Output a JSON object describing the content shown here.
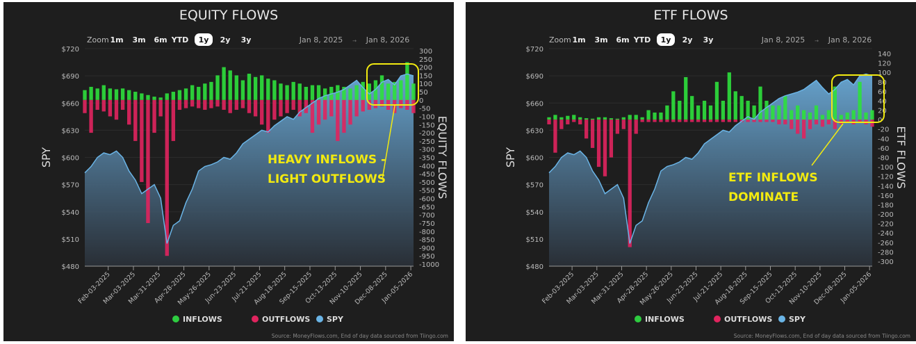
{
  "toolbar": {
    "zoom_label": "Zoom",
    "buttons": [
      "1m",
      "3m",
      "6m",
      "YTD",
      "1y",
      "2y",
      "3y"
    ],
    "active": "1y",
    "date_from": "Jan 8, 2025",
    "date_sep": "→",
    "date_to": "Jan 8, 2026"
  },
  "legend": [
    {
      "name": "INFLOWS",
      "color": "#2ecc40"
    },
    {
      "name": "OUTFLOWS",
      "color": "#e0245e"
    },
    {
      "name": "SPY",
      "color": "#6ab4e6"
    }
  ],
  "footer": "Source: MoneyFlows.com, End of day data sourced from Tiingo.com",
  "colors": {
    "inflow": "#2ee03c",
    "outflow": "#e0245e",
    "spy": "#6ab4e6",
    "annotation": "#f2ea10"
  },
  "chart_data": [
    {
      "type": "bar+area",
      "title": "EQUITY FLOWS",
      "ylabel_left": "SPY",
      "ylabel_right": "EQUITY FLOWS",
      "ylim_left": [
        480,
        720
      ],
      "yticks_left": [
        "$480",
        "$510",
        "$540",
        "$570",
        "$600",
        "$630",
        "$660",
        "$690",
        "$720"
      ],
      "ylim_right": [
        -1000,
        300
      ],
      "ytick_step_right": 50,
      "x_start": "2025-01-08",
      "x_end": "2026-01-08",
      "xticks": [
        "Feb-03-2025",
        "Mar-03-2025",
        "Mar-31-2025",
        "Apr-28-2025",
        "May-26-2025",
        "Jun-23-2025",
        "Jul-21-2025",
        "Aug-18-2025",
        "Sep-15-2025",
        "Oct-13-2025",
        "Nov-10-2025",
        "Dec-08-2025",
        "Jan-05-2026"
      ],
      "spy": [
        583,
        590,
        600,
        605,
        603,
        607,
        600,
        585,
        575,
        560,
        565,
        570,
        555,
        505,
        525,
        530,
        550,
        565,
        585,
        590,
        592,
        595,
        600,
        598,
        605,
        615,
        620,
        625,
        630,
        628,
        635,
        640,
        645,
        642,
        650,
        655,
        660,
        665,
        668,
        670,
        672,
        675,
        680,
        685,
        677,
        670,
        675,
        683,
        686,
        680,
        690,
        692,
        690
      ],
      "inflows": [
        60,
        80,
        70,
        90,
        70,
        65,
        70,
        60,
        50,
        40,
        30,
        20,
        15,
        40,
        50,
        60,
        70,
        90,
        80,
        100,
        110,
        150,
        200,
        180,
        150,
        120,
        160,
        140,
        150,
        130,
        120,
        100,
        90,
        110,
        100,
        80,
        90,
        90,
        70,
        80,
        90,
        80,
        70,
        90,
        110,
        100,
        120,
        150,
        100,
        110,
        120,
        230,
        100
      ],
      "outflows": [
        -80,
        -200,
        -60,
        -70,
        -100,
        -120,
        -60,
        -150,
        -250,
        -500,
        -750,
        -200,
        -100,
        -950,
        -250,
        -60,
        -50,
        -40,
        -50,
        -60,
        -50,
        -40,
        -60,
        -80,
        -60,
        -50,
        -80,
        -100,
        -150,
        -200,
        -120,
        -100,
        -80,
        -60,
        -100,
        -80,
        -200,
        -150,
        -120,
        -100,
        -250,
        -200,
        -150,
        -100,
        -70,
        -60,
        -50,
        -40,
        -60,
        -80,
        -50,
        -60,
        -80
      ],
      "annotation": [
        "HEAVY INFLOWS -",
        "LIGHT OUTFLOWS"
      ]
    },
    {
      "type": "bar+area",
      "title": "ETF FLOWS",
      "ylabel_left": "SPY",
      "ylabel_right": "ETF FLOWS",
      "ylim_left": [
        480,
        720
      ],
      "yticks_left": [
        "$480",
        "$510",
        "$540",
        "$570",
        "$600",
        "$630",
        "$660",
        "$690",
        "$720"
      ],
      "ylim_right": [
        -300,
        140
      ],
      "ytick_step_right": 20,
      "x_start": "2025-01-08",
      "x_end": "2026-01-08",
      "xticks": [
        "Feb-03-2025",
        "Mar-03-2025",
        "Mar-31-2025",
        "Apr-28-2025",
        "May-26-2025",
        "Jun-23-2025",
        "Jul-21-2025",
        "Aug-18-2025",
        "Sep-15-2025",
        "Oct-13-2025",
        "Nov-10-2025",
        "Dec-08-2025",
        "Jan-05-2026"
      ],
      "spy": [
        583,
        590,
        600,
        605,
        603,
        607,
        600,
        585,
        575,
        560,
        565,
        570,
        555,
        505,
        525,
        530,
        550,
        565,
        585,
        590,
        592,
        595,
        600,
        598,
        605,
        615,
        620,
        625,
        630,
        628,
        635,
        640,
        645,
        642,
        650,
        655,
        660,
        665,
        668,
        670,
        672,
        675,
        680,
        685,
        677,
        670,
        675,
        683,
        686,
        680,
        690,
        692,
        690
      ],
      "inflows": [
        5,
        10,
        5,
        8,
        10,
        5,
        3,
        2,
        5,
        5,
        3,
        2,
        5,
        10,
        10,
        5,
        20,
        15,
        15,
        30,
        60,
        40,
        90,
        50,
        30,
        40,
        30,
        80,
        40,
        100,
        60,
        50,
        40,
        30,
        70,
        40,
        30,
        30,
        50,
        20,
        30,
        20,
        15,
        30,
        10,
        20,
        70,
        10,
        15,
        20,
        80,
        15,
        20
      ],
      "outflows": [
        -10,
        -70,
        -20,
        -10,
        -5,
        -10,
        -40,
        -60,
        -100,
        -120,
        -80,
        -30,
        -20,
        -270,
        -30,
        -5,
        -5,
        -5,
        -5,
        -5,
        -5,
        -5,
        -5,
        -5,
        -5,
        -5,
        -5,
        -5,
        -5,
        -5,
        -5,
        -5,
        -5,
        -5,
        -5,
        -5,
        -5,
        -10,
        -10,
        -20,
        -30,
        -40,
        -20,
        -10,
        -15,
        -10,
        -20,
        -10,
        -5,
        -10,
        -5,
        -10,
        -15
      ],
      "annotation": [
        "ETF INFLOWS",
        "DOMINATE"
      ]
    }
  ]
}
